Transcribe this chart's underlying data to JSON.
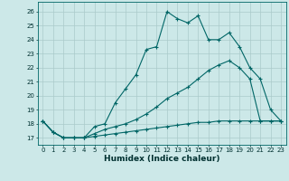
{
  "title": "",
  "xlabel": "Humidex (Indice chaleur)",
  "bg_color": "#cce8e8",
  "grid_color": "#aacaca",
  "line_color": "#006666",
  "xlim": [
    -0.5,
    23.5
  ],
  "ylim": [
    16.5,
    26.7
  ],
  "yticks": [
    17,
    18,
    19,
    20,
    21,
    22,
    23,
    24,
    25,
    26
  ],
  "xticks": [
    0,
    1,
    2,
    3,
    4,
    5,
    6,
    7,
    8,
    9,
    10,
    11,
    12,
    13,
    14,
    15,
    16,
    17,
    18,
    19,
    20,
    21,
    22,
    23
  ],
  "line1_x": [
    0,
    1,
    2,
    3,
    4,
    5,
    6,
    7,
    8,
    9,
    10,
    11,
    12,
    13,
    14,
    15,
    16,
    17,
    18,
    19,
    20,
    21,
    22,
    23
  ],
  "line1_y": [
    18.2,
    17.4,
    17.0,
    17.0,
    17.0,
    17.8,
    18.0,
    19.5,
    20.5,
    21.5,
    23.3,
    23.5,
    26.0,
    25.5,
    25.2,
    25.7,
    24.0,
    24.0,
    24.5,
    23.5,
    22.0,
    21.2,
    19.0,
    18.2
  ],
  "line2_x": [
    0,
    1,
    2,
    3,
    4,
    5,
    6,
    7,
    8,
    9,
    10,
    11,
    12,
    13,
    14,
    15,
    16,
    17,
    18,
    19,
    20,
    21,
    22,
    23
  ],
  "line2_y": [
    18.2,
    17.4,
    17.0,
    17.0,
    17.0,
    17.3,
    17.6,
    17.8,
    18.0,
    18.3,
    18.7,
    19.2,
    19.8,
    20.2,
    20.6,
    21.2,
    21.8,
    22.2,
    22.5,
    22.0,
    21.2,
    18.2,
    18.2,
    18.2
  ],
  "line3_x": [
    0,
    1,
    2,
    3,
    4,
    5,
    6,
    7,
    8,
    9,
    10,
    11,
    12,
    13,
    14,
    15,
    16,
    17,
    18,
    19,
    20,
    21,
    22,
    23
  ],
  "line3_y": [
    18.2,
    17.4,
    17.0,
    17.0,
    17.0,
    17.1,
    17.2,
    17.3,
    17.4,
    17.5,
    17.6,
    17.7,
    17.8,
    17.9,
    18.0,
    18.1,
    18.1,
    18.2,
    18.2,
    18.2,
    18.2,
    18.2,
    18.2,
    18.2
  ]
}
